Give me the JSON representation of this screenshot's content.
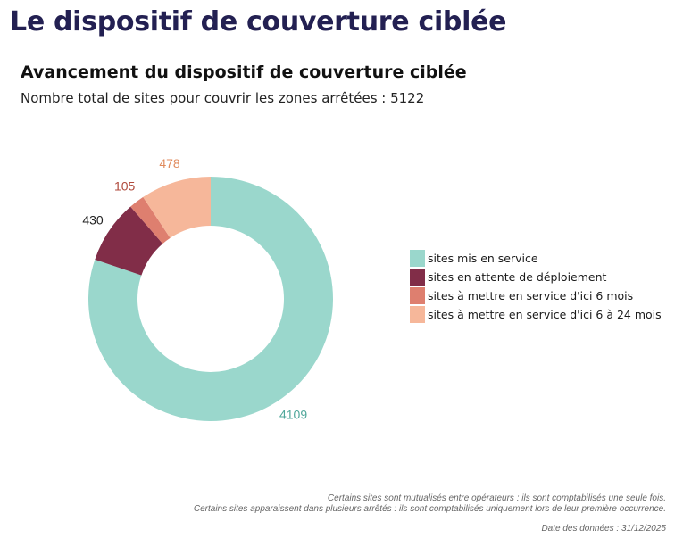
{
  "page": {
    "title": "Le dispositif de couverture ciblée"
  },
  "chart_data": {
    "type": "pie",
    "variant": "donut",
    "title": "Avancement du dispositif de couverture ciblée",
    "subtitle": "Nombre total de sites pour couvrir les zones arrêtées : 5122",
    "total": 5122,
    "legend_position": "right",
    "slices": [
      {
        "label": "sites mis en service",
        "value": 4109,
        "color": "#9AD7CC",
        "label_color": "#4FA79A"
      },
      {
        "label": "sites en attente de déploiement",
        "value": 430,
        "color": "#812D48",
        "label_color": "#222222"
      },
      {
        "label": "sites à mettre en service d'ici 6 mois",
        "value": 105,
        "color": "#DE7F6F",
        "label_color": "#B04A3C"
      },
      {
        "label": "sites à mettre en service d'ici 6 à 24 mois",
        "value": 478,
        "color": "#F6B79A",
        "label_color": "#E08A5C"
      }
    ]
  },
  "footer": {
    "notes": [
      "Certains sites sont mutualisés entre opérateurs : ils sont comptabilisés une seule fois.",
      "Certains sites apparaissent dans plusieurs arrêtés : ils sont comptabilisés uniquement lors de leur première occurrence."
    ],
    "date": "Date des données : 31/12/2025"
  }
}
